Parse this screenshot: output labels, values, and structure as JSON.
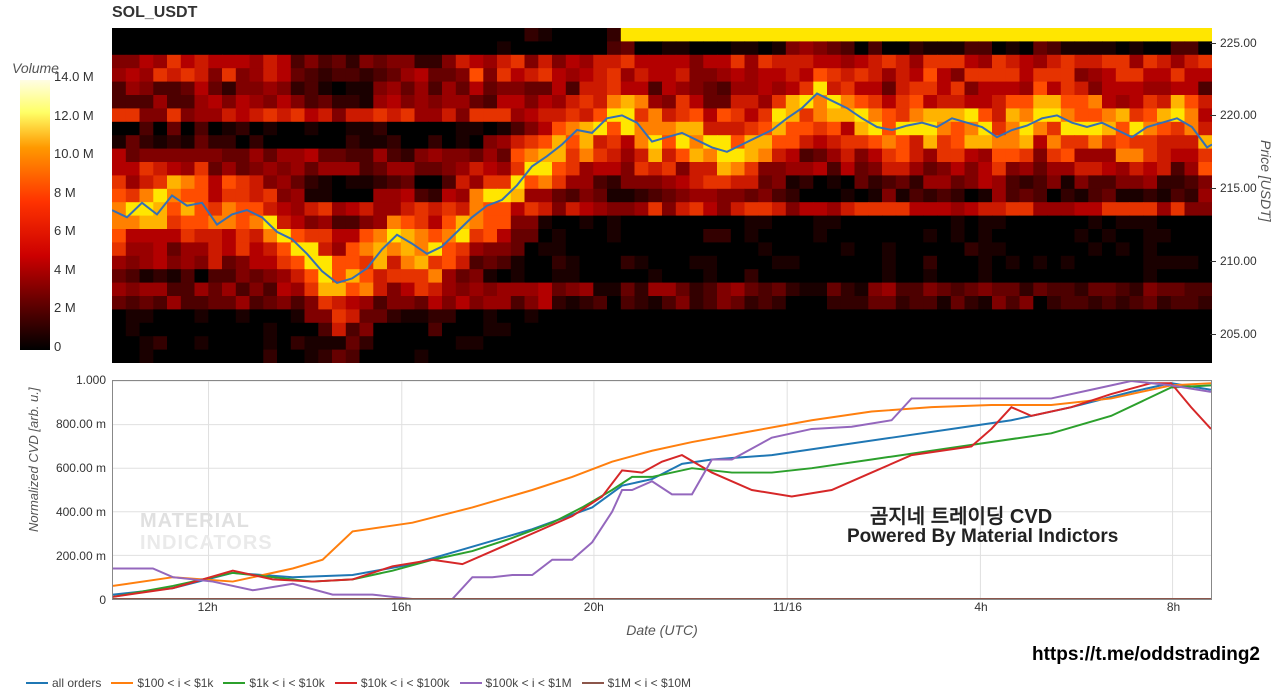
{
  "title": "SOL_USDT",
  "volume_colorbar": {
    "label": "Volume",
    "gradient_stops": [
      {
        "p": 0,
        "c": "#fffde4"
      },
      {
        "p": 12,
        "c": "#ffff66"
      },
      {
        "p": 25,
        "c": "#ff9900"
      },
      {
        "p": 45,
        "c": "#ff3300"
      },
      {
        "p": 65,
        "c": "#cc0000"
      },
      {
        "p": 82,
        "c": "#660000"
      },
      {
        "p": 100,
        "c": "#000000"
      }
    ],
    "ticks": [
      "14.0 M",
      "12.0 M",
      "10.0 M",
      "8 M",
      "6 M",
      "4 M",
      "2 M",
      "0"
    ]
  },
  "price_axis": {
    "label": "Price [USDT]",
    "min": 203,
    "max": 226,
    "ticks": [
      225.0,
      220.0,
      215.0,
      210.0,
      205.0
    ]
  },
  "price_line": {
    "color": "#356fb5",
    "width": 2,
    "points": [
      [
        0,
        213.5
      ],
      [
        15,
        213
      ],
      [
        30,
        214
      ],
      [
        45,
        213.2
      ],
      [
        60,
        214.5
      ],
      [
        75,
        213.8
      ],
      [
        90,
        214
      ],
      [
        105,
        212.5
      ],
      [
        120,
        213.2
      ],
      [
        135,
        213.5
      ],
      [
        150,
        213
      ],
      [
        165,
        212
      ],
      [
        180,
        211.5
      ],
      [
        195,
        210.5
      ],
      [
        210,
        209.3
      ],
      [
        225,
        208.5
      ],
      [
        240,
        208.8
      ],
      [
        255,
        209.5
      ],
      [
        270,
        210.8
      ],
      [
        285,
        211.8
      ],
      [
        300,
        211.2
      ],
      [
        315,
        210.5
      ],
      [
        330,
        211
      ],
      [
        345,
        212
      ],
      [
        360,
        213
      ],
      [
        375,
        213.8
      ],
      [
        390,
        214.2
      ],
      [
        405,
        215.2
      ],
      [
        420,
        216.5
      ],
      [
        435,
        217.2
      ],
      [
        450,
        218
      ],
      [
        465,
        219
      ],
      [
        480,
        218.8
      ],
      [
        495,
        219.8
      ],
      [
        510,
        220
      ],
      [
        525,
        219.5
      ],
      [
        540,
        218.2
      ],
      [
        555,
        218.5
      ],
      [
        570,
        218.8
      ],
      [
        585,
        218.3
      ],
      [
        600,
        217.8
      ],
      [
        615,
        217.5
      ],
      [
        630,
        218
      ],
      [
        645,
        218.5
      ],
      [
        660,
        219
      ],
      [
        675,
        219.8
      ],
      [
        690,
        220.5
      ],
      [
        705,
        221.5
      ],
      [
        720,
        221
      ],
      [
        735,
        220.5
      ],
      [
        750,
        219.8
      ],
      [
        765,
        219.2
      ],
      [
        780,
        219
      ],
      [
        795,
        219.3
      ],
      [
        810,
        219.5
      ],
      [
        825,
        219.2
      ],
      [
        840,
        219.8
      ],
      [
        855,
        219.5
      ],
      [
        870,
        219.2
      ],
      [
        885,
        218.5
      ],
      [
        900,
        219
      ],
      [
        915,
        219.3
      ],
      [
        930,
        219.8
      ],
      [
        945,
        220
      ],
      [
        960,
        219.5
      ],
      [
        975,
        219.2
      ],
      [
        990,
        219.5
      ],
      [
        1005,
        219
      ],
      [
        1020,
        218.5
      ],
      [
        1035,
        219.2
      ],
      [
        1050,
        219.5
      ],
      [
        1065,
        219.8
      ],
      [
        1080,
        219.2
      ],
      [
        1095,
        217.8
      ],
      [
        1100,
        218
      ]
    ]
  },
  "heatmap": {
    "rows": 25,
    "cols": 80,
    "top_yellow_band": true,
    "hot_bands_y": [
      0.08,
      0.12,
      0.18,
      0.24,
      0.38,
      0.52,
      0.78
    ],
    "background_colors": [
      "#000000",
      "#1a0000",
      "#330000",
      "#4d0000",
      "#660000",
      "#800000",
      "#990000",
      "#b30000",
      "#cc1a00",
      "#e63300",
      "#ff4d00",
      "#ff8000",
      "#ffb300",
      "#ffe600"
    ]
  },
  "cvd": {
    "y_label": "Normalized CVD [arb. u.]",
    "y_min": 0,
    "y_max": 1.0,
    "y_ticks": [
      "1.000",
      "800.00 m",
      "600.00 m",
      "400.00 m",
      "200.00 m",
      "0"
    ],
    "grid_color": "#e0e0e0",
    "series": [
      {
        "name": "all orders",
        "color": "#1f77b4",
        "points": [
          [
            0,
            0.02
          ],
          [
            60,
            0.05
          ],
          [
            120,
            0.12
          ],
          [
            180,
            0.1
          ],
          [
            240,
            0.11
          ],
          [
            300,
            0.16
          ],
          [
            360,
            0.24
          ],
          [
            420,
            0.32
          ],
          [
            480,
            0.42
          ],
          [
            510,
            0.52
          ],
          [
            540,
            0.55
          ],
          [
            570,
            0.62
          ],
          [
            600,
            0.64
          ],
          [
            660,
            0.66
          ],
          [
            720,
            0.7
          ],
          [
            780,
            0.74
          ],
          [
            840,
            0.78
          ],
          [
            900,
            0.82
          ],
          [
            960,
            0.88
          ],
          [
            1020,
            0.95
          ],
          [
            1060,
            0.99
          ],
          [
            1100,
            0.96
          ]
        ]
      },
      {
        "name": "$100 < i < $1k",
        "color": "#ff7f0e",
        "points": [
          [
            0,
            0.06
          ],
          [
            60,
            0.1
          ],
          [
            120,
            0.08
          ],
          [
            180,
            0.14
          ],
          [
            210,
            0.18
          ],
          [
            240,
            0.31
          ],
          [
            270,
            0.33
          ],
          [
            300,
            0.35
          ],
          [
            360,
            0.42
          ],
          [
            420,
            0.5
          ],
          [
            460,
            0.56
          ],
          [
            500,
            0.63
          ],
          [
            540,
            0.68
          ],
          [
            580,
            0.72
          ],
          [
            640,
            0.77
          ],
          [
            700,
            0.82
          ],
          [
            760,
            0.86
          ],
          [
            820,
            0.88
          ],
          [
            880,
            0.89
          ],
          [
            940,
            0.89
          ],
          [
            1000,
            0.92
          ],
          [
            1060,
            0.98
          ],
          [
            1100,
            0.99
          ]
        ]
      },
      {
        "name": "$1k < i < $10k",
        "color": "#2ca02c",
        "points": [
          [
            0,
            0.01
          ],
          [
            60,
            0.06
          ],
          [
            120,
            0.12
          ],
          [
            160,
            0.1
          ],
          [
            200,
            0.08
          ],
          [
            240,
            0.09
          ],
          [
            280,
            0.13
          ],
          [
            320,
            0.18
          ],
          [
            360,
            0.22
          ],
          [
            400,
            0.28
          ],
          [
            440,
            0.35
          ],
          [
            470,
            0.42
          ],
          [
            500,
            0.5
          ],
          [
            520,
            0.56
          ],
          [
            540,
            0.56
          ],
          [
            580,
            0.6
          ],
          [
            620,
            0.58
          ],
          [
            660,
            0.58
          ],
          [
            700,
            0.6
          ],
          [
            760,
            0.64
          ],
          [
            820,
            0.68
          ],
          [
            880,
            0.72
          ],
          [
            940,
            0.76
          ],
          [
            1000,
            0.84
          ],
          [
            1060,
            0.97
          ],
          [
            1100,
            0.98
          ]
        ]
      },
      {
        "name": "$10k < i < $100k",
        "color": "#d62728",
        "points": [
          [
            0,
            0.01
          ],
          [
            60,
            0.05
          ],
          [
            120,
            0.13
          ],
          [
            160,
            0.09
          ],
          [
            200,
            0.08
          ],
          [
            240,
            0.09
          ],
          [
            280,
            0.15
          ],
          [
            320,
            0.18
          ],
          [
            350,
            0.16
          ],
          [
            380,
            0.22
          ],
          [
            420,
            0.3
          ],
          [
            460,
            0.38
          ],
          [
            490,
            0.47
          ],
          [
            510,
            0.59
          ],
          [
            530,
            0.58
          ],
          [
            550,
            0.63
          ],
          [
            570,
            0.66
          ],
          [
            600,
            0.58
          ],
          [
            640,
            0.5
          ],
          [
            680,
            0.47
          ],
          [
            720,
            0.5
          ],
          [
            760,
            0.58
          ],
          [
            800,
            0.66
          ],
          [
            830,
            0.68
          ],
          [
            860,
            0.7
          ],
          [
            880,
            0.78
          ],
          [
            900,
            0.88
          ],
          [
            920,
            0.84
          ],
          [
            960,
            0.88
          ],
          [
            1000,
            0.94
          ],
          [
            1040,
            0.99
          ],
          [
            1060,
            0.99
          ],
          [
            1080,
            0.88
          ],
          [
            1100,
            0.78
          ]
        ]
      },
      {
        "name": "$100k < i < $1M",
        "color": "#9467bd",
        "points": [
          [
            0,
            0.14
          ],
          [
            40,
            0.14
          ],
          [
            60,
            0.1
          ],
          [
            100,
            0.08
          ],
          [
            140,
            0.04
          ],
          [
            180,
            0.07
          ],
          [
            220,
            0.02
          ],
          [
            260,
            0.02
          ],
          [
            300,
            0.0
          ],
          [
            340,
            0.0
          ],
          [
            360,
            0.1
          ],
          [
            380,
            0.1
          ],
          [
            400,
            0.11
          ],
          [
            420,
            0.11
          ],
          [
            440,
            0.18
          ],
          [
            460,
            0.18
          ],
          [
            480,
            0.26
          ],
          [
            500,
            0.4
          ],
          [
            510,
            0.5
          ],
          [
            520,
            0.5
          ],
          [
            540,
            0.54
          ],
          [
            560,
            0.48
          ],
          [
            580,
            0.48
          ],
          [
            600,
            0.64
          ],
          [
            620,
            0.64
          ],
          [
            660,
            0.74
          ],
          [
            700,
            0.78
          ],
          [
            740,
            0.79
          ],
          [
            780,
            0.82
          ],
          [
            800,
            0.92
          ],
          [
            820,
            0.92
          ],
          [
            860,
            0.92
          ],
          [
            900,
            0.92
          ],
          [
            940,
            0.92
          ],
          [
            980,
            0.96
          ],
          [
            1020,
            1.0
          ],
          [
            1060,
            0.98
          ],
          [
            1100,
            0.95
          ]
        ]
      },
      {
        "name": "$1M < i < $10M",
        "color": "#8c564b",
        "points": [
          [
            0,
            0.0
          ],
          [
            1100,
            0.0
          ]
        ]
      }
    ]
  },
  "x_axis": {
    "label": "Date (UTC)",
    "ticks": [
      {
        "pos": 0.087,
        "label": "12h"
      },
      {
        "pos": 0.263,
        "label": "16h"
      },
      {
        "pos": 0.438,
        "label": "20h"
      },
      {
        "pos": 0.614,
        "label": "11/16"
      },
      {
        "pos": 0.79,
        "label": "4h"
      },
      {
        "pos": 0.965,
        "label": "8h"
      }
    ]
  },
  "watermarks": {
    "line1": "곰지네 트레이딩 CVD",
    "line2": "Powered By Material Indictors",
    "faint1": "MATERIAL",
    "faint2": "INDICATORS"
  },
  "url": "https://t.me/oddstrading2",
  "legend_items": [
    {
      "label": "all orders",
      "color": "#1f77b4"
    },
    {
      "label": "$100 < i < $1k",
      "color": "#ff7f0e"
    },
    {
      "label": "$1k < i < $10k",
      "color": "#2ca02c"
    },
    {
      "label": "$10k < i < $100k",
      "color": "#d62728"
    },
    {
      "label": "$100k < i < $1M",
      "color": "#9467bd"
    },
    {
      "label": "$1M < i < $10M",
      "color": "#8c564b"
    }
  ]
}
